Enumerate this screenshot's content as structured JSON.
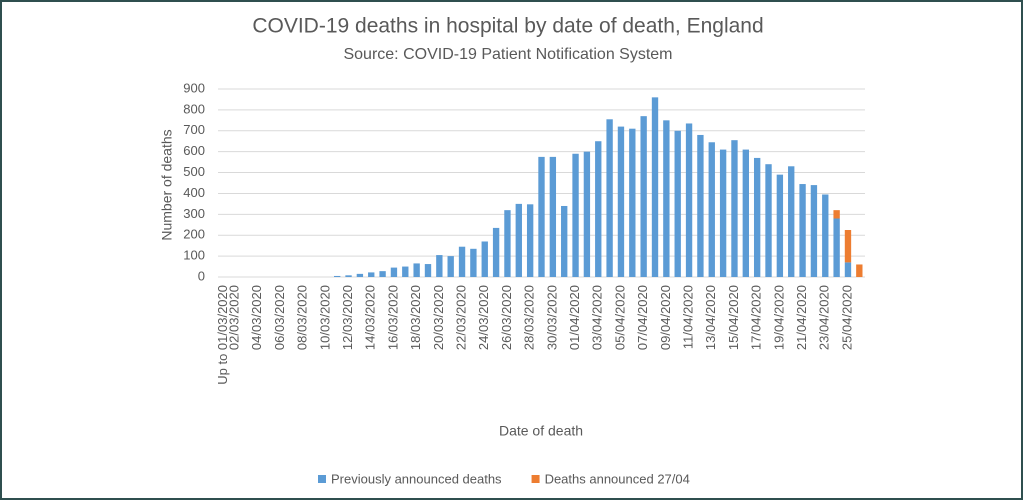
{
  "chart_data": {
    "type": "bar",
    "stacked": true,
    "title": "COVID-19 deaths in hospital by date of death, England",
    "subtitle": "Source: COVID-19 Patient Notification System",
    "x_label": "Date of death",
    "y_label": "Number of deaths",
    "categories": [
      "Up to 01/03/2020",
      "02/03/2020",
      null,
      "04/03/2020",
      null,
      "06/03/2020",
      null,
      "08/03/2020",
      null,
      "10/03/2020",
      null,
      "12/03/2020",
      null,
      "14/03/2020",
      null,
      "16/03/2020",
      null,
      "18/03/2020",
      null,
      "20/03/2020",
      null,
      "22/03/2020",
      null,
      "24/03/2020",
      null,
      "26/03/2020",
      null,
      "28/03/2020",
      null,
      "30/03/2020",
      null,
      "01/04/2020",
      null,
      "03/04/2020",
      null,
      "05/04/2020",
      null,
      "07/04/2020",
      null,
      "09/04/2020",
      null,
      "11/04/2020",
      null,
      "13/04/2020",
      null,
      "15/04/2020",
      null,
      "17/04/2020",
      null,
      "19/04/2020",
      null,
      "21/04/2020",
      null,
      "23/04/2020",
      null,
      "25/04/2020",
      null
    ],
    "series": [
      {
        "name": "Previously announced deaths",
        "color": "#5b9bd5",
        "values": [
          0,
          0,
          0,
          0,
          0,
          0,
          0,
          0,
          0,
          0,
          5,
          8,
          15,
          22,
          28,
          45,
          50,
          65,
          62,
          105,
          100,
          145,
          135,
          170,
          235,
          320,
          350,
          348,
          575,
          575,
          340,
          590,
          600,
          650,
          755,
          720,
          710,
          770,
          860,
          750,
          700,
          735,
          680,
          645,
          610,
          655,
          610,
          570,
          540,
          490,
          530,
          445,
          440,
          395,
          280,
          70,
          0
        ]
      },
      {
        "name": "Deaths announced 27/04",
        "color": "#ed7d31",
        "values": [
          0,
          0,
          0,
          0,
          0,
          0,
          0,
          0,
          0,
          0,
          0,
          0,
          0,
          0,
          0,
          0,
          0,
          0,
          0,
          0,
          0,
          0,
          0,
          0,
          0,
          0,
          0,
          0,
          0,
          0,
          0,
          0,
          0,
          0,
          0,
          0,
          0,
          0,
          0,
          0,
          0,
          0,
          0,
          0,
          0,
          0,
          0,
          0,
          0,
          0,
          0,
          0,
          0,
          0,
          40,
          155,
          60
        ]
      }
    ],
    "ylim": [
      0,
      900
    ],
    "yticks": [
      0,
      100,
      200,
      300,
      400,
      500,
      600,
      700,
      800,
      900
    ],
    "grid": true,
    "legend": "bottom"
  }
}
